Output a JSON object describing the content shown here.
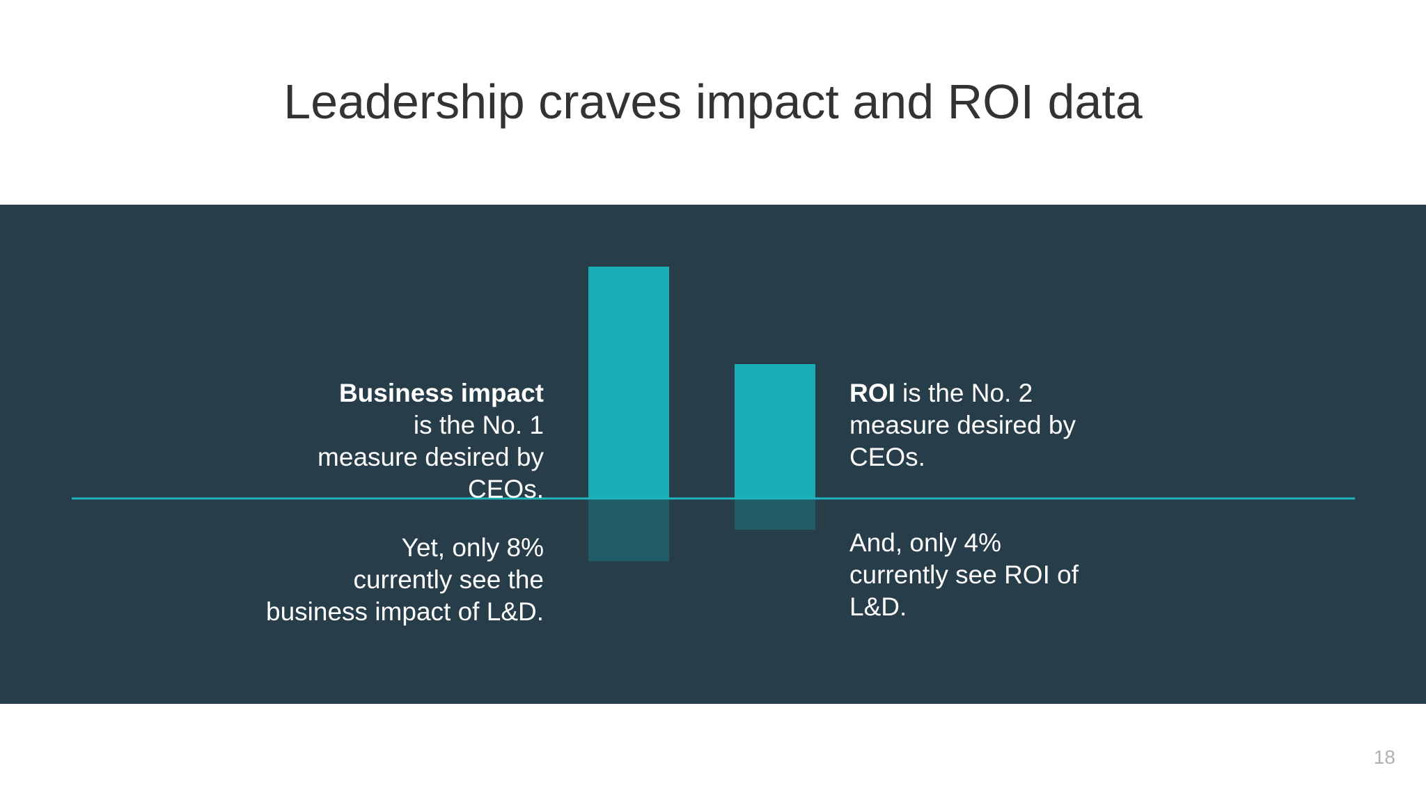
{
  "slide": {
    "title": "Leadership craves impact and ROI data",
    "page_number": "18"
  },
  "left_text": {
    "bold": "Business impact",
    "rest_line1": "is the No. 1",
    "rest_line2": "measure desired by",
    "rest_line3": "CEOs.",
    "second_line1": "Yet, only 8%",
    "second_line2": "currently see the",
    "second_line3": "business impact of L&D."
  },
  "right_text": {
    "bold": "ROI",
    "rest_line1": " is the No. 2",
    "rest_line2": "measure desired by",
    "rest_line3": "CEOs.",
    "second_line1": "And, only 4%",
    "second_line2": "currently see ROI of",
    "second_line3": "L&D."
  },
  "colors": {
    "background_band": "#273d4a",
    "bar_top": "#17aeb6",
    "bar_bottom": "#1f5c67",
    "baseline": "#1fb5bd"
  },
  "chart_data": {
    "type": "bar",
    "categories": [
      "Business impact",
      "ROI"
    ],
    "series": [
      {
        "values": [
          1,
          2
        ]
      },
      {
        "values": [
          8,
          4
        ]
      }
    ]
  }
}
